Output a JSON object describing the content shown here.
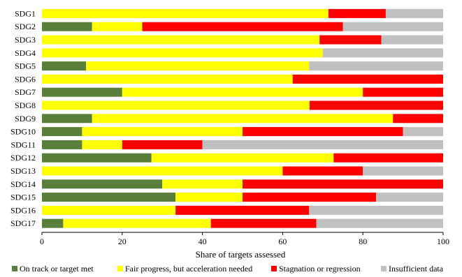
{
  "chart_data": {
    "type": "bar",
    "orientation": "horizontal",
    "stacked": true,
    "title": "",
    "xlabel": "Share of targets assessed",
    "ylabel": "",
    "xlim": [
      0,
      100
    ],
    "xticks": [
      "0",
      "20",
      "40",
      "60",
      "80",
      "100"
    ],
    "grid": false,
    "legend_position": "bottom",
    "categories": [
      "SDG1",
      "SDG2",
      "SDG3",
      "SDG4",
      "SDG5",
      "SDG6",
      "SDG7",
      "SDG8",
      "SDG9",
      "SDG10",
      "SDG11",
      "SDG12",
      "SDG13",
      "SDG14",
      "SDG15",
      "SDG16",
      "SDG17"
    ],
    "series": [
      {
        "name": "On track or target met",
        "color": "#5a7f3a",
        "values": [
          0,
          12.5,
          0,
          0,
          11,
          0,
          20,
          0,
          12.5,
          10,
          10,
          27.3,
          0,
          30,
          33.3,
          0,
          5.3
        ]
      },
      {
        "name": "Fair progress, but acceleration needed",
        "color": "#ffff00",
        "values": [
          71.4,
          12.5,
          69.2,
          70,
          55.6,
          62.5,
          60,
          66.7,
          75,
          40,
          10,
          45.4,
          60,
          20,
          16.7,
          33.3,
          36.8
        ]
      },
      {
        "name": "Stagnation or regression",
        "color": "#ff0000",
        "values": [
          14.3,
          50,
          15.4,
          0,
          0,
          37.5,
          20,
          33.3,
          12.5,
          40,
          20,
          27.3,
          20,
          50,
          33.3,
          33.3,
          26.3
        ]
      },
      {
        "name": "Insufficient data",
        "color": "#c0c0c0",
        "values": [
          14.3,
          25,
          15.4,
          30,
          33.4,
          0,
          0,
          0,
          0,
          10,
          60,
          0,
          20,
          0,
          16.7,
          33.4,
          31.6
        ]
      }
    ]
  }
}
